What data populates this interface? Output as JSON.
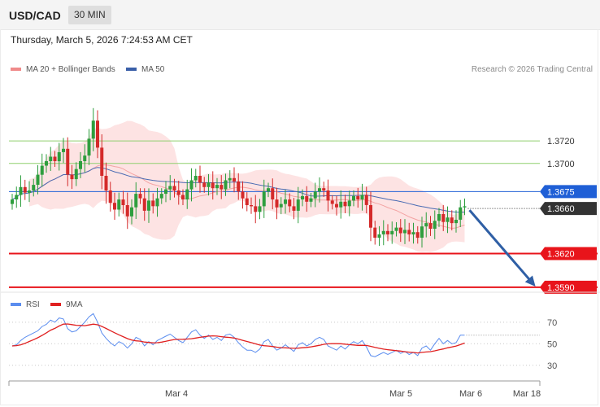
{
  "header": {
    "symbol": "USD/CAD",
    "timeframe": "30 MIN"
  },
  "timestamp": "Thursday, March 5, 2026 7:24:53 AM CET",
  "legend": {
    "ma20": {
      "label": "MA 20 + Bollinger Bands",
      "color": "#f08a8a"
    },
    "ma50": {
      "label": "MA 50",
      "color": "#3a5fa8"
    }
  },
  "credit": "Research © 2026 Trading Central",
  "rsi_legend": {
    "rsi": {
      "label": "RSI",
      "color": "#5b8def"
    },
    "ma9": {
      "label": "9MA",
      "color": "#e02020"
    }
  },
  "colors": {
    "up": "#2e9e3e",
    "down": "#d42a2a",
    "band": "#fde3e3",
    "support": "#e8141b",
    "resistance": "#8fcf6e",
    "pivot": "#1f5fd6",
    "current": "#333333",
    "arrow": "#2f5fa5"
  },
  "chart_data": [
    {
      "type": "candlestick",
      "title": "USD/CAD",
      "x_ticks": [
        "Mar 4",
        "Mar 5",
        "Mar 6",
        "Mar 18"
      ],
      "ylim": [
        1.3582,
        1.3783
      ],
      "levels": [
        {
          "value": 1.372,
          "label": "1.3720",
          "kind": "resistance"
        },
        {
          "value": 1.37,
          "label": "1.3700",
          "kind": "resistance"
        },
        {
          "value": 1.3675,
          "label": "1.3675",
          "kind": "pivot"
        },
        {
          "value": 1.366,
          "label": "1.3660",
          "kind": "current"
        },
        {
          "value": 1.362,
          "label": "1.3620",
          "kind": "support"
        },
        {
          "value": 1.359,
          "label": "1.3590",
          "kind": "support"
        }
      ],
      "forecast_arrow": {
        "from": 1.366,
        "to": 1.359
      },
      "closes": [
        1.3668,
        1.3672,
        1.3679,
        1.3674,
        1.3676,
        1.3681,
        1.369,
        1.3698,
        1.3702,
        1.3706,
        1.3702,
        1.371,
        1.3713,
        1.369,
        1.3686,
        1.3695,
        1.3702,
        1.3707,
        1.3722,
        1.3738,
        1.3714,
        1.3689,
        1.3676,
        1.3665,
        1.3659,
        1.3668,
        1.3663,
        1.3653,
        1.3661,
        1.3673,
        1.3669,
        1.3658,
        1.3667,
        1.3662,
        1.3669,
        1.3673,
        1.3677,
        1.368,
        1.3676,
        1.3672,
        1.3668,
        1.3677,
        1.3685,
        1.3689,
        1.3683,
        1.3679,
        1.3683,
        1.3678,
        1.3681,
        1.3677,
        1.3685,
        1.3687,
        1.3684,
        1.3675,
        1.3669,
        1.3663,
        1.3662,
        1.3657,
        1.3662,
        1.3675,
        1.3678,
        1.3668,
        1.3661,
        1.3664,
        1.3668,
        1.3662,
        1.3658,
        1.3668,
        1.3671,
        1.3666,
        1.3669,
        1.3675,
        1.3678,
        1.3676,
        1.3667,
        1.3664,
        1.3661,
        1.3666,
        1.3662,
        1.3667,
        1.3671,
        1.3668,
        1.3672,
        1.3663,
        1.3643,
        1.3634,
        1.3637,
        1.364,
        1.3637,
        1.364,
        1.3643,
        1.3638,
        1.3641,
        1.3637,
        1.3639,
        1.3634,
        1.3644,
        1.3647,
        1.3642,
        1.3649,
        1.3655,
        1.3648,
        1.3652,
        1.3647,
        1.365,
        1.3661,
        1.3662
      ]
    },
    {
      "type": "line",
      "title": "RSI",
      "ylim": [
        20,
        85
      ],
      "y_ticks": [
        70,
        50,
        30
      ],
      "series": [
        {
          "name": "RSI",
          "values": [
            48,
            49,
            53,
            56,
            58,
            60,
            62,
            66,
            68,
            72,
            70,
            74,
            73,
            64,
            61,
            62,
            66,
            70,
            75,
            78,
            70,
            60,
            55,
            51,
            48,
            52,
            50,
            46,
            50,
            56,
            54,
            48,
            52,
            49,
            53,
            55,
            57,
            59,
            56,
            53,
            51,
            56,
            61,
            63,
            58,
            55,
            58,
            54,
            56,
            53,
            58,
            59,
            56,
            51,
            47,
            44,
            44,
            42,
            45,
            52,
            54,
            48,
            44,
            46,
            49,
            46,
            43,
            49,
            51,
            48,
            50,
            54,
            56,
            54,
            48,
            46,
            44,
            48,
            45,
            49,
            52,
            50,
            53,
            47,
            39,
            38,
            40,
            42,
            40,
            42,
            44,
            41,
            43,
            40,
            42,
            39,
            46,
            48,
            44,
            50,
            55,
            50,
            53,
            50,
            51,
            58,
            58
          ]
        },
        {
          "name": "9MA",
          "values": [
            48,
            48.3,
            49,
            50.4,
            52.1,
            53.8,
            55.6,
            57.8,
            60.1,
            62.6,
            64.3,
            66.5,
            68.2,
            68.4,
            67.8,
            67.2,
            67,
            66.8,
            67.5,
            68.2,
            67.6,
            66.1,
            64.2,
            62.2,
            60.2,
            58.3,
            56.6,
            54.8,
            53.4,
            52.7,
            52.4,
            51.6,
            51.2,
            50.9,
            51,
            51.5,
            52.3,
            53.2,
            53.9,
            54.1,
            54.2,
            54.4,
            54.7,
            55.3,
            56,
            56.5,
            57.1,
            57.3,
            57.1,
            56.6,
            56.1,
            55.8,
            55.3,
            54.3,
            53.2,
            52.1,
            51.1,
            49.9,
            48.8,
            48.2,
            47.9,
            47.4,
            46.8,
            46.4,
            46.2,
            46,
            45.8,
            45.9,
            46.3,
            46.6,
            47.1,
            47.8,
            48.6,
            49.5,
            49.9,
            50.1,
            50.1,
            50,
            49.6,
            49.2,
            48.9,
            48.5,
            48.6,
            48.4,
            47.6,
            46.6,
            45.8,
            45,
            44.5,
            44,
            43.6,
            43.2,
            42.6,
            42.2,
            41.9,
            41.5,
            42,
            42.4,
            42.7,
            43.4,
            44.4,
            45.2,
            46.2,
            47,
            47.9,
            49.2,
            50.7
          ]
        }
      ]
    }
  ]
}
